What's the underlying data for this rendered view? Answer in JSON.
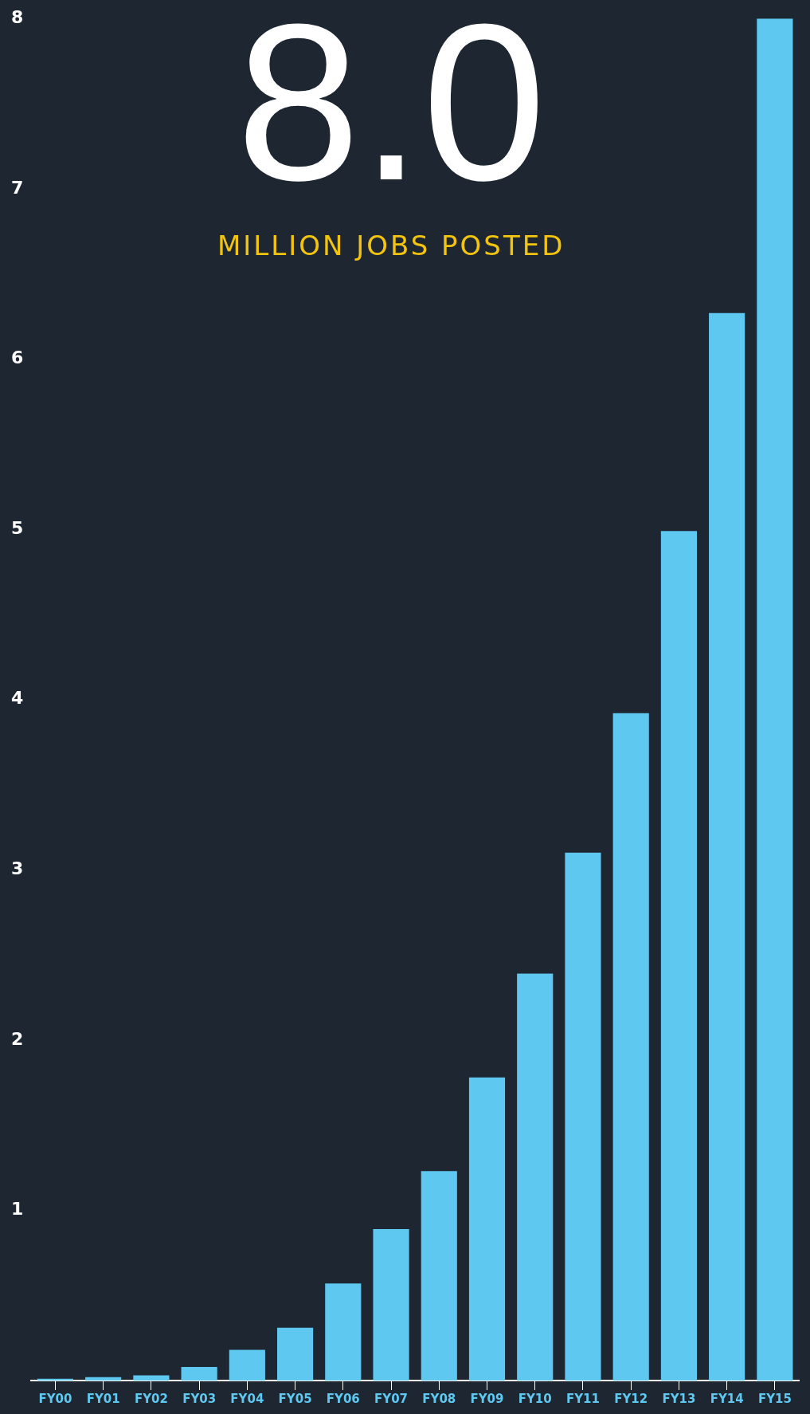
{
  "chart_data": {
    "type": "bar",
    "title": "8.0",
    "subtitle": "MILLION JOBS POSTED",
    "categories": [
      "FY00",
      "FY01",
      "FY02",
      "FY03",
      "FY04",
      "FY05",
      "FY06",
      "FY07",
      "FY08",
      "FY09",
      "FY10",
      "FY11",
      "FY12",
      "FY13",
      "FY14",
      "FY15"
    ],
    "values": [
      0.01,
      0.02,
      0.03,
      0.08,
      0.18,
      0.31,
      0.57,
      0.89,
      1.23,
      1.78,
      2.39,
      3.1,
      3.92,
      4.99,
      6.27,
      8.0
    ],
    "color": "#5ec8f0",
    "ylim": [
      0,
      8
    ],
    "yticks": [
      1,
      2,
      3,
      4,
      5,
      6,
      7,
      8
    ]
  }
}
